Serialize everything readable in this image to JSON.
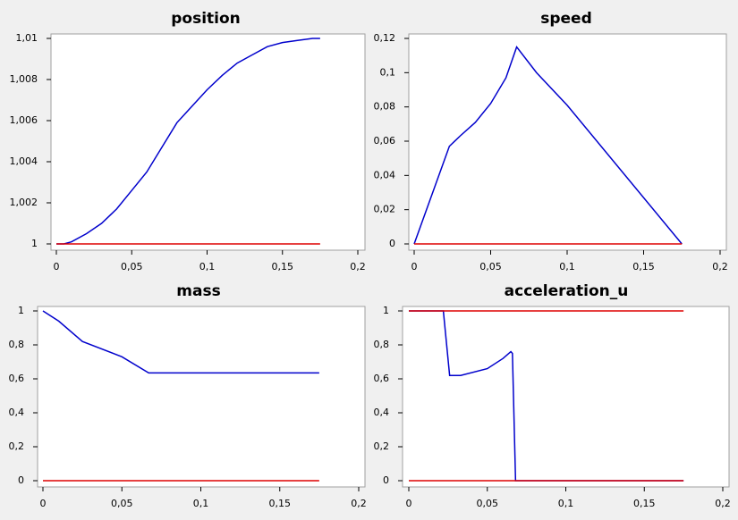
{
  "chart_data": [
    {
      "type": "line",
      "title": "position",
      "xlim": [
        0,
        0.2
      ],
      "xticks": [
        0,
        {
          "value": 0.05,
          "label": "0,05"
        },
        {
          "value": 0.1,
          "label": "0,1"
        },
        {
          "value": 0.15,
          "label": "0,15"
        },
        {
          "value": 0.2,
          "label": "0,2"
        }
      ],
      "ylim": [
        1,
        1.01
      ],
      "yticks": [
        1,
        {
          "value": 1.002,
          "label": "1,002"
        },
        {
          "value": 1.004,
          "label": "1,004"
        },
        {
          "value": 1.006,
          "label": "1,006"
        },
        {
          "value": 1.008,
          "label": "1,008"
        },
        {
          "value": 1.01,
          "label": "1,01"
        }
      ],
      "series": [
        {
          "color": "#0000cc",
          "x": [
            0,
            0.005,
            0.01,
            0.02,
            0.03,
            0.04,
            0.05,
            0.06,
            0.07,
            0.08,
            0.09,
            0.1,
            0.11,
            0.12,
            0.13,
            0.14,
            0.15,
            0.16,
            0.17,
            0.175
          ],
          "values": [
            1,
            1,
            1.0001,
            1.0005,
            1.001,
            1.0017,
            1.0026,
            1.0035,
            1.0047,
            1.0059,
            1.0067,
            1.0075,
            1.0082,
            1.0088,
            1.0092,
            1.0096,
            1.0098,
            1.0099,
            1.01,
            1.01
          ]
        },
        {
          "color": "#dd0000",
          "x": [
            0,
            0.175
          ],
          "values": [
            1,
            1
          ]
        }
      ]
    },
    {
      "type": "line",
      "title": "speed",
      "xlim": [
        0,
        0.2
      ],
      "xticks": [
        0,
        {
          "value": 0.05,
          "label": "0,05"
        },
        {
          "value": 0.1,
          "label": "0,1"
        },
        {
          "value": 0.15,
          "label": "0,15"
        },
        {
          "value": 0.2,
          "label": "0,2"
        }
      ],
      "ylim": [
        0,
        0.12
      ],
      "yticks": [
        0,
        {
          "value": 0.02,
          "label": "0,02"
        },
        {
          "value": 0.04,
          "label": "0,04"
        },
        {
          "value": 0.06,
          "label": "0,06"
        },
        {
          "value": 0.08,
          "label": "0,08"
        },
        {
          "value": 0.1,
          "label": "0,1"
        },
        {
          "value": 0.12,
          "label": "0,12"
        }
      ],
      "series": [
        {
          "color": "#0000cc",
          "x": [
            0,
            0.023,
            0.03,
            0.04,
            0.05,
            0.06,
            0.067,
            0.08,
            0.1,
            0.175
          ],
          "values": [
            0,
            0.057,
            0.063,
            0.071,
            0.082,
            0.097,
            0.115,
            0.1,
            0.081,
            0
          ]
        },
        {
          "color": "#dd0000",
          "x": [
            0,
            0.175
          ],
          "values": [
            0,
            0
          ]
        }
      ]
    },
    {
      "type": "line",
      "title": "mass",
      "xlim": [
        0,
        0.2
      ],
      "xticks": [
        0,
        {
          "value": 0.05,
          "label": "0,05"
        },
        {
          "value": 0.1,
          "label": "0,1"
        },
        {
          "value": 0.15,
          "label": "0,15"
        },
        {
          "value": 0.2,
          "label": "0,2"
        }
      ],
      "ylim": [
        0,
        1
      ],
      "yticks": [
        0,
        {
          "value": 0.2,
          "label": "0,2"
        },
        {
          "value": 0.4,
          "label": "0,4"
        },
        {
          "value": 0.6,
          "label": "0,6"
        },
        {
          "value": 0.8,
          "label": "0,8"
        },
        1
      ],
      "series": [
        {
          "color": "#0000cc",
          "x": [
            0,
            0.01,
            0.025,
            0.05,
            0.067,
            0.175
          ],
          "values": [
            1,
            0.94,
            0.82,
            0.73,
            0.635,
            0.635
          ]
        },
        {
          "color": "#dd0000",
          "x": [
            0,
            0.175
          ],
          "values": [
            0,
            0
          ]
        }
      ]
    },
    {
      "type": "line",
      "title": "acceleration_u",
      "xlim": [
        0,
        0.2
      ],
      "xticks": [
        0,
        {
          "value": 0.05,
          "label": "0,05"
        },
        {
          "value": 0.1,
          "label": "0,1"
        },
        {
          "value": 0.15,
          "label": "0,15"
        },
        {
          "value": 0.2,
          "label": "0,2"
        }
      ],
      "ylim": [
        0,
        1
      ],
      "yticks": [
        0,
        {
          "value": 0.2,
          "label": "0,2"
        },
        {
          "value": 0.4,
          "label": "0,4"
        },
        {
          "value": 0.6,
          "label": "0,6"
        },
        {
          "value": 0.8,
          "label": "0,8"
        },
        1
      ],
      "series": [
        {
          "color": "#0000cc",
          "x": [
            0,
            0.022,
            0.026,
            0.033,
            0.05,
            0.06,
            0.065,
            0.066,
            0.068,
            0.175
          ],
          "values": [
            1,
            1,
            0.62,
            0.62,
            0.66,
            0.72,
            0.76,
            0.75,
            0,
            0
          ]
        },
        {
          "color": "#dd0000",
          "x": [
            0,
            0.175
          ],
          "values": [
            1,
            1
          ]
        },
        {
          "color": "#dd0000",
          "x": [
            0,
            0.175
          ],
          "values": [
            0,
            0
          ]
        }
      ]
    }
  ]
}
